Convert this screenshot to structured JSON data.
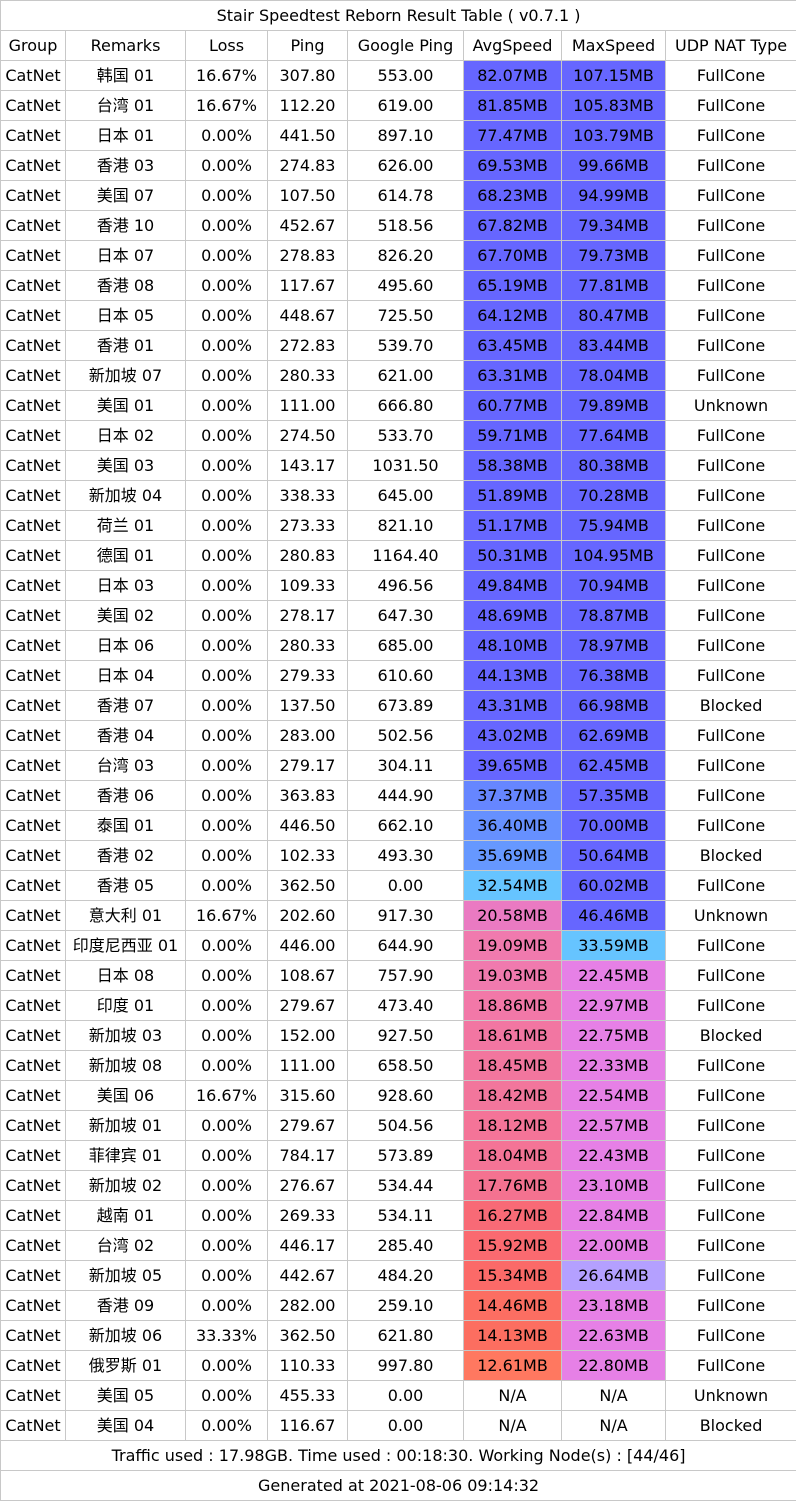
{
  "title": "Stair Speedtest Reborn Result Table ( v0.7.1 )",
  "headers": [
    "Group",
    "Remarks",
    "Loss",
    "Ping",
    "Google Ping",
    "AvgSpeed",
    "MaxSpeed",
    "UDP NAT Type"
  ],
  "rows": [
    {
      "group": "CatNet",
      "remarks": "韩国 01",
      "loss": "16.67%",
      "ping": "307.80",
      "gping": "553.00",
      "avg": "82.07MB",
      "max": "107.15MB",
      "nat": "FullCone",
      "avg_color": "#6666ff",
      "max_color": "#6666ff"
    },
    {
      "group": "CatNet",
      "remarks": "台湾 01",
      "loss": "16.67%",
      "ping": "112.20",
      "gping": "619.00",
      "avg": "81.85MB",
      "max": "105.83MB",
      "nat": "FullCone",
      "avg_color": "#6666ff",
      "max_color": "#6666ff"
    },
    {
      "group": "CatNet",
      "remarks": "日本 01",
      "loss": "0.00%",
      "ping": "441.50",
      "gping": "897.10",
      "avg": "77.47MB",
      "max": "103.79MB",
      "nat": "FullCone",
      "avg_color": "#6666ff",
      "max_color": "#6666ff"
    },
    {
      "group": "CatNet",
      "remarks": "香港 03",
      "loss": "0.00%",
      "ping": "274.83",
      "gping": "626.00",
      "avg": "69.53MB",
      "max": "99.66MB",
      "nat": "FullCone",
      "avg_color": "#6666ff",
      "max_color": "#6666ff"
    },
    {
      "group": "CatNet",
      "remarks": "美国 07",
      "loss": "0.00%",
      "ping": "107.50",
      "gping": "614.78",
      "avg": "68.23MB",
      "max": "94.99MB",
      "nat": "FullCone",
      "avg_color": "#6666ff",
      "max_color": "#6666ff"
    },
    {
      "group": "CatNet",
      "remarks": "香港 10",
      "loss": "0.00%",
      "ping": "452.67",
      "gping": "518.56",
      "avg": "67.82MB",
      "max": "79.34MB",
      "nat": "FullCone",
      "avg_color": "#6666ff",
      "max_color": "#6666ff"
    },
    {
      "group": "CatNet",
      "remarks": "日本 07",
      "loss": "0.00%",
      "ping": "278.83",
      "gping": "826.20",
      "avg": "67.70MB",
      "max": "79.73MB",
      "nat": "FullCone",
      "avg_color": "#6666ff",
      "max_color": "#6666ff"
    },
    {
      "group": "CatNet",
      "remarks": "香港 08",
      "loss": "0.00%",
      "ping": "117.67",
      "gping": "495.60",
      "avg": "65.19MB",
      "max": "77.81MB",
      "nat": "FullCone",
      "avg_color": "#6666ff",
      "max_color": "#6666ff"
    },
    {
      "group": "CatNet",
      "remarks": "日本 05",
      "loss": "0.00%",
      "ping": "448.67",
      "gping": "725.50",
      "avg": "64.12MB",
      "max": "80.47MB",
      "nat": "FullCone",
      "avg_color": "#6666ff",
      "max_color": "#6666ff"
    },
    {
      "group": "CatNet",
      "remarks": "香港 01",
      "loss": "0.00%",
      "ping": "272.83",
      "gping": "539.70",
      "avg": "63.45MB",
      "max": "83.44MB",
      "nat": "FullCone",
      "avg_color": "#6666ff",
      "max_color": "#6666ff"
    },
    {
      "group": "CatNet",
      "remarks": "新加坡 07",
      "loss": "0.00%",
      "ping": "280.33",
      "gping": "621.00",
      "avg": "63.31MB",
      "max": "78.04MB",
      "nat": "FullCone",
      "avg_color": "#6666ff",
      "max_color": "#6666ff"
    },
    {
      "group": "CatNet",
      "remarks": "美国 01",
      "loss": "0.00%",
      "ping": "111.00",
      "gping": "666.80",
      "avg": "60.77MB",
      "max": "79.89MB",
      "nat": "Unknown",
      "avg_color": "#6666ff",
      "max_color": "#6666ff"
    },
    {
      "group": "CatNet",
      "remarks": "日本 02",
      "loss": "0.00%",
      "ping": "274.50",
      "gping": "533.70",
      "avg": "59.71MB",
      "max": "77.64MB",
      "nat": "FullCone",
      "avg_color": "#6666ff",
      "max_color": "#6666ff"
    },
    {
      "group": "CatNet",
      "remarks": "美国 03",
      "loss": "0.00%",
      "ping": "143.17",
      "gping": "1031.50",
      "avg": "58.38MB",
      "max": "80.38MB",
      "nat": "FullCone",
      "avg_color": "#6666ff",
      "max_color": "#6666ff"
    },
    {
      "group": "CatNet",
      "remarks": "新加坡 04",
      "loss": "0.00%",
      "ping": "338.33",
      "gping": "645.00",
      "avg": "51.89MB",
      "max": "70.28MB",
      "nat": "FullCone",
      "avg_color": "#6666ff",
      "max_color": "#6666ff"
    },
    {
      "group": "CatNet",
      "remarks": "荷兰 01",
      "loss": "0.00%",
      "ping": "273.33",
      "gping": "821.10",
      "avg": "51.17MB",
      "max": "75.94MB",
      "nat": "FullCone",
      "avg_color": "#6666ff",
      "max_color": "#6666ff"
    },
    {
      "group": "CatNet",
      "remarks": "德国 01",
      "loss": "0.00%",
      "ping": "280.83",
      "gping": "1164.40",
      "avg": "50.31MB",
      "max": "104.95MB",
      "nat": "FullCone",
      "avg_color": "#6666ff",
      "max_color": "#6666ff"
    },
    {
      "group": "CatNet",
      "remarks": "日本 03",
      "loss": "0.00%",
      "ping": "109.33",
      "gping": "496.56",
      "avg": "49.84MB",
      "max": "70.94MB",
      "nat": "FullCone",
      "avg_color": "#6666ff",
      "max_color": "#6666ff"
    },
    {
      "group": "CatNet",
      "remarks": "美国 02",
      "loss": "0.00%",
      "ping": "278.17",
      "gping": "647.30",
      "avg": "48.69MB",
      "max": "78.87MB",
      "nat": "FullCone",
      "avg_color": "#6666ff",
      "max_color": "#6666ff"
    },
    {
      "group": "CatNet",
      "remarks": "日本 06",
      "loss": "0.00%",
      "ping": "280.33",
      "gping": "685.00",
      "avg": "48.10MB",
      "max": "78.97MB",
      "nat": "FullCone",
      "avg_color": "#6666ff",
      "max_color": "#6666ff"
    },
    {
      "group": "CatNet",
      "remarks": "日本 04",
      "loss": "0.00%",
      "ping": "279.33",
      "gping": "610.60",
      "avg": "44.13MB",
      "max": "76.38MB",
      "nat": "FullCone",
      "avg_color": "#6666ff",
      "max_color": "#6666ff"
    },
    {
      "group": "CatNet",
      "remarks": "香港 07",
      "loss": "0.00%",
      "ping": "137.50",
      "gping": "673.89",
      "avg": "43.31MB",
      "max": "66.98MB",
      "nat": "Blocked",
      "avg_color": "#6666ff",
      "max_color": "#6666ff"
    },
    {
      "group": "CatNet",
      "remarks": "香港 04",
      "loss": "0.00%",
      "ping": "283.00",
      "gping": "502.56",
      "avg": "43.02MB",
      "max": "62.69MB",
      "nat": "FullCone",
      "avg_color": "#6666ff",
      "max_color": "#6666ff"
    },
    {
      "group": "CatNet",
      "remarks": "台湾 03",
      "loss": "0.00%",
      "ping": "279.17",
      "gping": "304.11",
      "avg": "39.65MB",
      "max": "62.45MB",
      "nat": "FullCone",
      "avg_color": "#6666ff",
      "max_color": "#6666ff"
    },
    {
      "group": "CatNet",
      "remarks": "香港 06",
      "loss": "0.00%",
      "ping": "363.83",
      "gping": "444.90",
      "avg": "37.37MB",
      "max": "57.35MB",
      "nat": "FullCone",
      "avg_color": "#6686ff",
      "max_color": "#6666ff"
    },
    {
      "group": "CatNet",
      "remarks": "泰国 01",
      "loss": "0.00%",
      "ping": "446.50",
      "gping": "662.10",
      "avg": "36.40MB",
      "max": "70.00MB",
      "nat": "FullCone",
      "avg_color": "#6690ff",
      "max_color": "#6666ff"
    },
    {
      "group": "CatNet",
      "remarks": "香港 02",
      "loss": "0.00%",
      "ping": "102.33",
      "gping": "493.30",
      "avg": "35.69MB",
      "max": "50.64MB",
      "nat": "Blocked",
      "avg_color": "#6698ff",
      "max_color": "#6666ff"
    },
    {
      "group": "CatNet",
      "remarks": "香港 05",
      "loss": "0.00%",
      "ping": "362.50",
      "gping": "0.00",
      "avg": "32.54MB",
      "max": "60.02MB",
      "nat": "FullCone",
      "avg_color": "#66c4ff",
      "max_color": "#6666ff"
    },
    {
      "group": "CatNet",
      "remarks": "意大利 01",
      "loss": "16.67%",
      "ping": "202.60",
      "gping": "917.30",
      "avg": "20.58MB",
      "max": "46.46MB",
      "nat": "Unknown",
      "avg_color": "#ea7ac2",
      "max_color": "#6666ff"
    },
    {
      "group": "CatNet",
      "remarks": "印度尼西亚 01",
      "loss": "0.00%",
      "ping": "446.00",
      "gping": "644.90",
      "avg": "19.09MB",
      "max": "33.59MB",
      "nat": "FullCone",
      "avg_color": "#f07aae",
      "max_color": "#66c4ff"
    },
    {
      "group": "CatNet",
      "remarks": "日本 08",
      "loss": "0.00%",
      "ping": "108.67",
      "gping": "757.90",
      "avg": "19.03MB",
      "max": "22.45MB",
      "nat": "FullCone",
      "avg_color": "#f07aae",
      "max_color": "#e680e6"
    },
    {
      "group": "CatNet",
      "remarks": "印度 01",
      "loss": "0.00%",
      "ping": "279.67",
      "gping": "473.40",
      "avg": "18.86MB",
      "max": "22.97MB",
      "nat": "FullCone",
      "avg_color": "#f278a8",
      "max_color": "#e680e6"
    },
    {
      "group": "CatNet",
      "remarks": "新加坡 03",
      "loss": "0.00%",
      "ping": "152.00",
      "gping": "927.50",
      "avg": "18.61MB",
      "max": "22.75MB",
      "nat": "Blocked",
      "avg_color": "#f276a2",
      "max_color": "#e680e6"
    },
    {
      "group": "CatNet",
      "remarks": "新加坡 08",
      "loss": "0.00%",
      "ping": "111.00",
      "gping": "658.50",
      "avg": "18.45MB",
      "max": "22.33MB",
      "nat": "FullCone",
      "avg_color": "#f2769e",
      "max_color": "#e680e6"
    },
    {
      "group": "CatNet",
      "remarks": "美国 06",
      "loss": "16.67%",
      "ping": "315.60",
      "gping": "928.60",
      "avg": "18.42MB",
      "max": "22.54MB",
      "nat": "FullCone",
      "avg_color": "#f2769c",
      "max_color": "#e680e6"
    },
    {
      "group": "CatNet",
      "remarks": "新加坡 01",
      "loss": "0.00%",
      "ping": "279.67",
      "gping": "504.56",
      "avg": "18.12MB",
      "max": "22.57MB",
      "nat": "FullCone",
      "avg_color": "#f47498",
      "max_color": "#e680e6"
    },
    {
      "group": "CatNet",
      "remarks": "菲律宾 01",
      "loss": "0.00%",
      "ping": "784.17",
      "gping": "573.89",
      "avg": "18.04MB",
      "max": "22.43MB",
      "nat": "FullCone",
      "avg_color": "#f47496",
      "max_color": "#e680e6"
    },
    {
      "group": "CatNet",
      "remarks": "新加坡 02",
      "loss": "0.00%",
      "ping": "276.67",
      "gping": "534.44",
      "avg": "17.76MB",
      "max": "23.10MB",
      "nat": "FullCone",
      "avg_color": "#f47290",
      "max_color": "#e680e6"
    },
    {
      "group": "CatNet",
      "remarks": "越南 01",
      "loss": "0.00%",
      "ping": "269.33",
      "gping": "534.11",
      "avg": "16.27MB",
      "max": "22.84MB",
      "nat": "FullCone",
      "avg_color": "#f86a76",
      "max_color": "#e680e6"
    },
    {
      "group": "CatNet",
      "remarks": "台湾 02",
      "loss": "0.00%",
      "ping": "446.17",
      "gping": "285.40",
      "avg": "15.92MB",
      "max": "22.00MB",
      "nat": "FullCone",
      "avg_color": "#fa6a70",
      "max_color": "#e680e6"
    },
    {
      "group": "CatNet",
      "remarks": "新加坡 05",
      "loss": "0.00%",
      "ping": "442.67",
      "gping": "484.20",
      "avg": "15.34MB",
      "max": "26.64MB",
      "nat": "FullCone",
      "avg_color": "#fb6a68",
      "max_color": "#b4a0ff"
    },
    {
      "group": "CatNet",
      "remarks": "香港 09",
      "loss": "0.00%",
      "ping": "282.00",
      "gping": "259.10",
      "avg": "14.46MB",
      "max": "23.18MB",
      "nat": "FullCone",
      "avg_color": "#fc6e62",
      "max_color": "#e680e6"
    },
    {
      "group": "CatNet",
      "remarks": "新加坡 06",
      "loss": "33.33%",
      "ping": "362.50",
      "gping": "621.80",
      "avg": "14.13MB",
      "max": "22.63MB",
      "nat": "FullCone",
      "avg_color": "#fc6e60",
      "max_color": "#e680e6"
    },
    {
      "group": "CatNet",
      "remarks": "俄罗斯 01",
      "loss": "0.00%",
      "ping": "110.33",
      "gping": "997.80",
      "avg": "12.61MB",
      "max": "22.80MB",
      "nat": "FullCone",
      "avg_color": "#ff7860",
      "max_color": "#e680e6"
    },
    {
      "group": "CatNet",
      "remarks": "美国 05",
      "loss": "0.00%",
      "ping": "455.33",
      "gping": "0.00",
      "avg": "N/A",
      "max": "N/A",
      "nat": "Unknown",
      "avg_color": "#ffffff",
      "max_color": "#ffffff"
    },
    {
      "group": "CatNet",
      "remarks": "美国 04",
      "loss": "0.00%",
      "ping": "116.67",
      "gping": "0.00",
      "avg": "N/A",
      "max": "N/A",
      "nat": "Blocked",
      "avg_color": "#ffffff",
      "max_color": "#ffffff"
    }
  ],
  "footer_traffic": "Traffic used : 17.98GB. Time used : 00:18:30. Working Node(s) : [44/46]",
  "footer_generated": "Generated at 2021-08-06 09:14:32"
}
